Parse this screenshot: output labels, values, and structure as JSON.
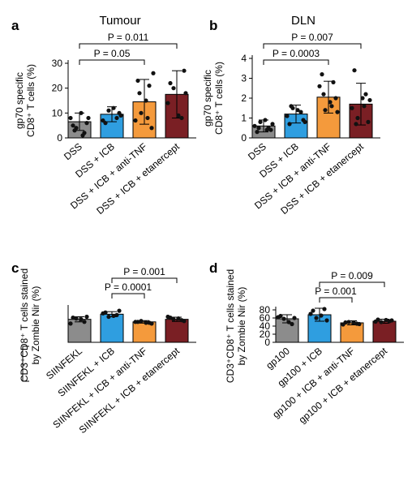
{
  "colors": {
    "grey": "#8c8c8c",
    "blue": "#2f9ee0",
    "orange": "#f49a3c",
    "darkred": "#7a1f24"
  },
  "chart_data": [
    {
      "panel": "a",
      "type": "bar",
      "title": "Tumour",
      "ylabel": [
        "gp70 specific",
        "CD8⁺ T cells (%)"
      ],
      "ylim": [
        0,
        30
      ],
      "yticks": [
        0,
        10,
        20,
        30
      ],
      "categories": [
        "DSS",
        "DSS + ICB",
        "DSS + ICB + anti-TNF",
        "DSS + ICB + etanercept"
      ],
      "colors": [
        "#8c8c8c",
        "#2f9ee0",
        "#f49a3c",
        "#7a1f24"
      ],
      "values": [
        6.5,
        9.5,
        14.5,
        17.5
      ],
      "errors": [
        3.5,
        3.0,
        9.0,
        9.5
      ],
      "points": [
        [
          5,
          2,
          4,
          6,
          8,
          10,
          8,
          3,
          1
        ],
        [
          6,
          8,
          11,
          10,
          7,
          12,
          9
        ],
        [
          23,
          21,
          10,
          4,
          7,
          15,
          26,
          18,
          8
        ],
        [
          22,
          8,
          20,
          27,
          14,
          9,
          18
        ]
      ],
      "significance": [
        {
          "from": 0,
          "to": 2,
          "label": "P = 0.05"
        },
        {
          "from": 0,
          "to": 3,
          "label": "P = 0.011"
        }
      ]
    },
    {
      "panel": "b",
      "type": "bar",
      "title": "DLN",
      "ylabel": [
        "gp70 specific",
        "CD8⁺ T cells (%)"
      ],
      "ylim": [
        0,
        4
      ],
      "yticks": [
        0,
        1,
        2,
        3,
        4
      ],
      "categories": [
        "DSS",
        "DSS + ICB",
        "DSS + ICB + anti-TNF",
        "DSS + ICB + etanercept"
      ],
      "colors": [
        "#8c8c8c",
        "#2f9ee0",
        "#f49a3c",
        "#7a1f24"
      ],
      "values": [
        0.6,
        1.2,
        2.05,
        1.7
      ],
      "errors": [
        0.3,
        0.45,
        0.8,
        1.05
      ],
      "points": [
        [
          0.3,
          0.5,
          0.8,
          0.4,
          0.6,
          0.9,
          0.7,
          0.5,
          0.4
        ],
        [
          0.7,
          1.3,
          1.5,
          0.9,
          1.1,
          1.4,
          0.8,
          1.6
        ],
        [
          3.2,
          2.8,
          1.4,
          2.0,
          2.6,
          1.8,
          1.3,
          2.2,
          1.6
        ],
        [
          3.4,
          2.2,
          1.0,
          0.8,
          1.5,
          2.0,
          1.9,
          0.7,
          1.6
        ]
      ],
      "significance": [
        {
          "from": 0,
          "to": 2,
          "label": "P = 0.0003"
        },
        {
          "from": 0,
          "to": 3,
          "label": "P = 0.007"
        }
      ]
    },
    {
      "panel": "c",
      "type": "bar",
      "title": "",
      "ylabel": [
        "CD3⁺CD8⁺ T cells stained",
        "by Zombie Nir (%)"
      ],
      "ylim": [
        0,
        40
      ],
      "yticks": [],
      "categories": [
        "SIINFEKL",
        "SIINFEKL + ICB",
        "SIINFEKL + ICB + anti-TNF",
        "SIINFEKL + ICB + etanercept"
      ],
      "colors": [
        "#8c8c8c",
        "#2f9ee0",
        "#f49a3c",
        "#7a1f24"
      ],
      "values": [
        27,
        33,
        24,
        27
      ],
      "errors": [
        3,
        3,
        1.5,
        2.5
      ],
      "points": [
        [
          29,
          24,
          28,
          30,
          22,
          27
        ],
        [
          35,
          32,
          30,
          37,
          34,
          31
        ],
        [
          24,
          23,
          25,
          22,
          24,
          23
        ],
        [
          29,
          26,
          27,
          25,
          30,
          28
        ]
      ],
      "significance": [
        {
          "from": 1,
          "to": 2,
          "label": "P = 0.0001"
        },
        {
          "from": 1,
          "to": 3,
          "label": "P = 0.001"
        }
      ]
    },
    {
      "panel": "d",
      "type": "bar",
      "title": "",
      "ylabel": [
        "CD3⁺CD8⁺ T cells stained",
        "by Zombie Nir (%)"
      ],
      "ylim": [
        0,
        80
      ],
      "yticks": [
        0,
        20,
        40,
        60,
        80
      ],
      "categories": [
        "gp100",
        "gp100 + ICB",
        "gp100 + ICB + anti-TNF",
        "gp100 + ICB + etanercept"
      ],
      "colors": [
        "#8c8c8c",
        "#2f9ee0",
        "#f49a3c",
        "#7a1f24"
      ],
      "values": [
        58,
        68,
        48,
        52
      ],
      "errors": [
        10,
        16,
        5,
        5
      ],
      "points": [
        [
          65,
          45,
          58,
          60,
          62,
          50
        ],
        [
          78,
          82,
          60,
          54,
          70,
          66
        ],
        [
          49,
          46,
          50,
          45,
          44,
          49
        ],
        [
          56,
          52,
          50,
          54,
          51,
          55
        ]
      ],
      "significance": [
        {
          "from": 1,
          "to": 2,
          "label": "P = 0.001"
        },
        {
          "from": 1,
          "to": 3,
          "label": "P = 0.009"
        }
      ]
    }
  ]
}
